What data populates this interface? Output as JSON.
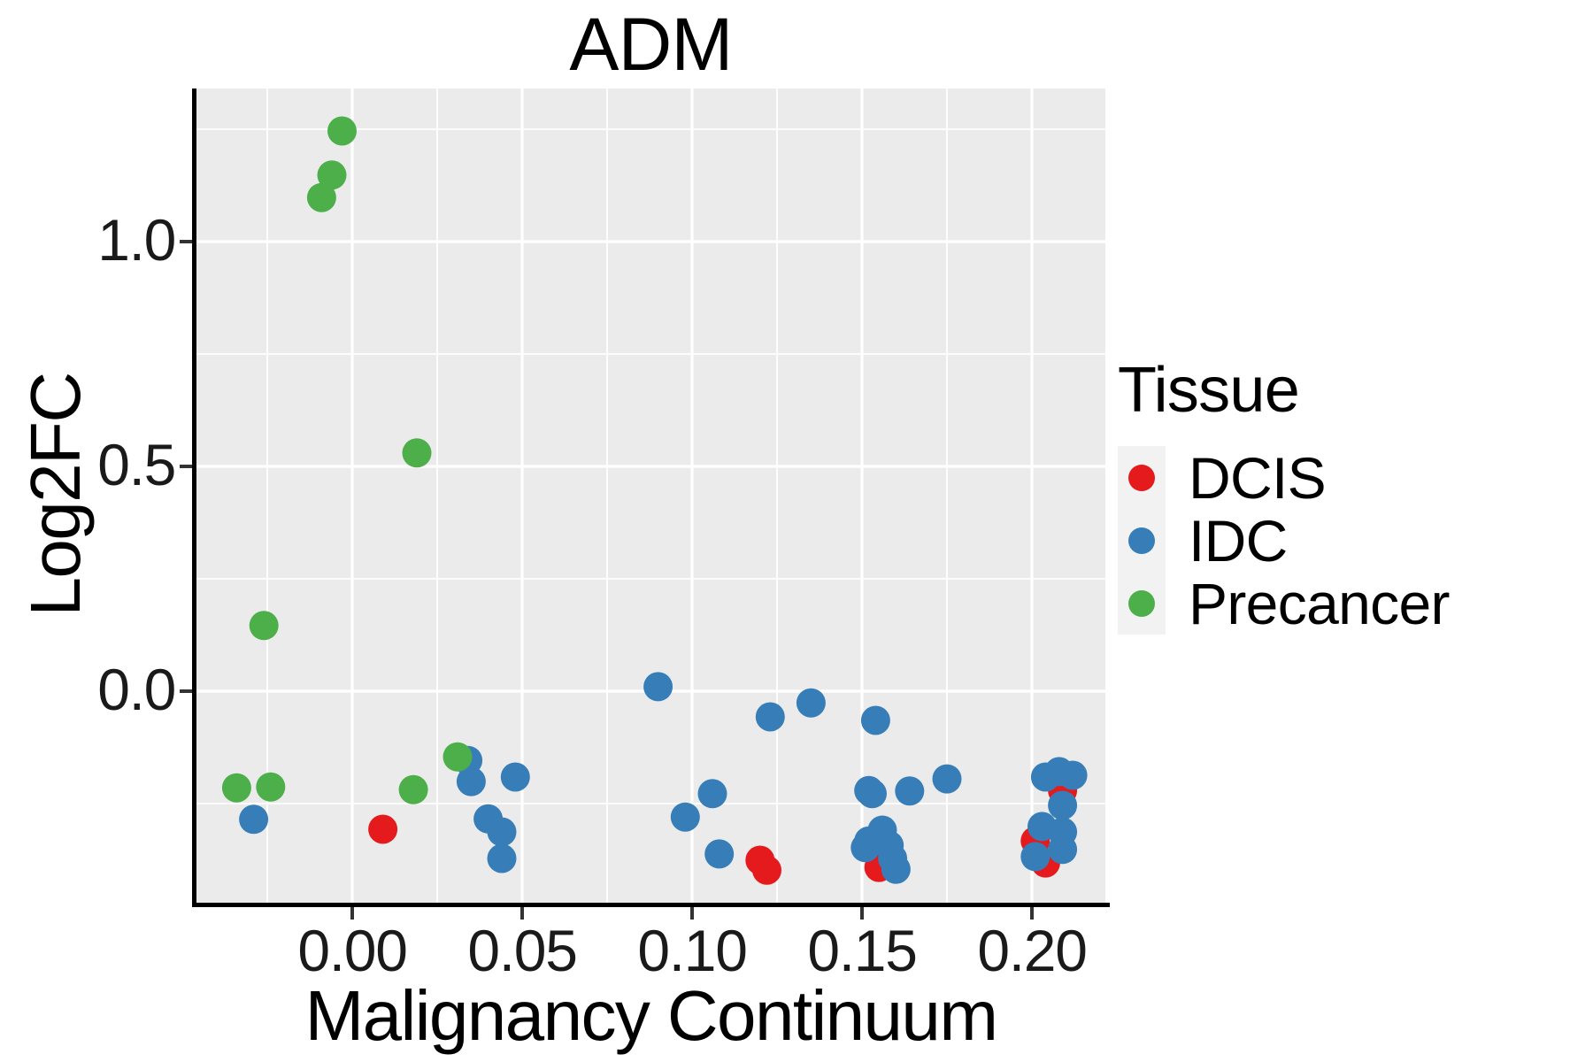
{
  "title": "ADM",
  "axes": {
    "x_label": "Malignancy Continuum",
    "y_label": "Log2FC"
  },
  "legend": {
    "title": "Tissue",
    "items": [
      {
        "label": "DCIS",
        "color": "#E41A1C"
      },
      {
        "label": "IDC",
        "color": "#377EB8"
      },
      {
        "label": "Precancer",
        "color": "#4DAF4A"
      }
    ]
  },
  "style": {
    "panel_bg": "#EBEBEB",
    "grid_color": "#FFFFFF",
    "spine_color": "#000000",
    "tick_color": "#333333",
    "legend_key_bg": "#F2F2F2"
  },
  "chart_data": {
    "type": "scatter",
    "title": "ADM",
    "xlabel": "Malignancy Continuum",
    "ylabel": "Log2FC",
    "xlim": [
      -0.046,
      0.222
    ],
    "ylim": [
      -0.476,
      1.35
    ],
    "grid": "white major+minor gridlines on gray panel",
    "legend_position": "right",
    "legend_title": "Tissue",
    "x_ticks": {
      "values": [
        0.0,
        0.05,
        0.1,
        0.15,
        0.2
      ],
      "labels": [
        "0.00",
        "0.05",
        "0.10",
        "0.15",
        "0.20"
      ]
    },
    "y_ticks": {
      "values": [
        0.0,
        0.5,
        1.0
      ],
      "labels": [
        "0.0",
        "0.5",
        "1.0"
      ]
    },
    "x_minor": [
      -0.025,
      0.025,
      0.075,
      0.125,
      0.175
    ],
    "y_minor": [
      -0.25,
      0.25,
      0.75,
      1.25
    ],
    "point_radius_px": 16.5,
    "series": [
      {
        "name": "DCIS",
        "color": "#E41A1C",
        "points": [
          [
            0.009,
            -0.307
          ],
          [
            0.12,
            -0.376
          ],
          [
            0.122,
            -0.398
          ],
          [
            0.155,
            -0.392
          ],
          [
            0.209,
            -0.221
          ],
          [
            0.201,
            -0.333
          ],
          [
            0.204,
            -0.382
          ]
        ]
      },
      {
        "name": "IDC",
        "color": "#377EB8",
        "points": [
          [
            -0.029,
            -0.285
          ],
          [
            0.034,
            -0.154
          ],
          [
            0.035,
            -0.201
          ],
          [
            0.048,
            -0.191
          ],
          [
            0.04,
            -0.284
          ],
          [
            0.044,
            -0.313
          ],
          [
            0.044,
            -0.372
          ],
          [
            0.09,
            0.01
          ],
          [
            0.098,
            -0.28
          ],
          [
            0.106,
            -0.228
          ],
          [
            0.108,
            -0.362
          ],
          [
            0.123,
            -0.057
          ],
          [
            0.135,
            -0.026
          ],
          [
            0.154,
            -0.065
          ],
          [
            0.152,
            -0.221
          ],
          [
            0.153,
            -0.228
          ],
          [
            0.164,
            -0.222
          ],
          [
            0.175,
            -0.195
          ],
          [
            0.156,
            -0.309
          ],
          [
            0.152,
            -0.333
          ],
          [
            0.151,
            -0.348
          ],
          [
            0.158,
            -0.343
          ],
          [
            0.159,
            -0.372
          ],
          [
            0.16,
            -0.396
          ],
          [
            0.203,
            -0.301
          ],
          [
            0.204,
            -0.191
          ],
          [
            0.208,
            -0.179
          ],
          [
            0.212,
            -0.187
          ],
          [
            0.209,
            -0.254
          ],
          [
            0.201,
            -0.368
          ],
          [
            0.209,
            -0.313
          ],
          [
            0.209,
            -0.352
          ]
        ]
      },
      {
        "name": "Precancer",
        "color": "#4DAF4A",
        "points": [
          [
            -0.003,
            1.246
          ],
          [
            -0.006,
            1.148
          ],
          [
            -0.009,
            1.098
          ],
          [
            0.019,
            0.53
          ],
          [
            -0.026,
            0.146
          ],
          [
            -0.034,
            -0.215
          ],
          [
            -0.024,
            -0.213
          ],
          [
            0.018,
            -0.219
          ],
          [
            0.031,
            -0.146
          ]
        ]
      }
    ]
  }
}
